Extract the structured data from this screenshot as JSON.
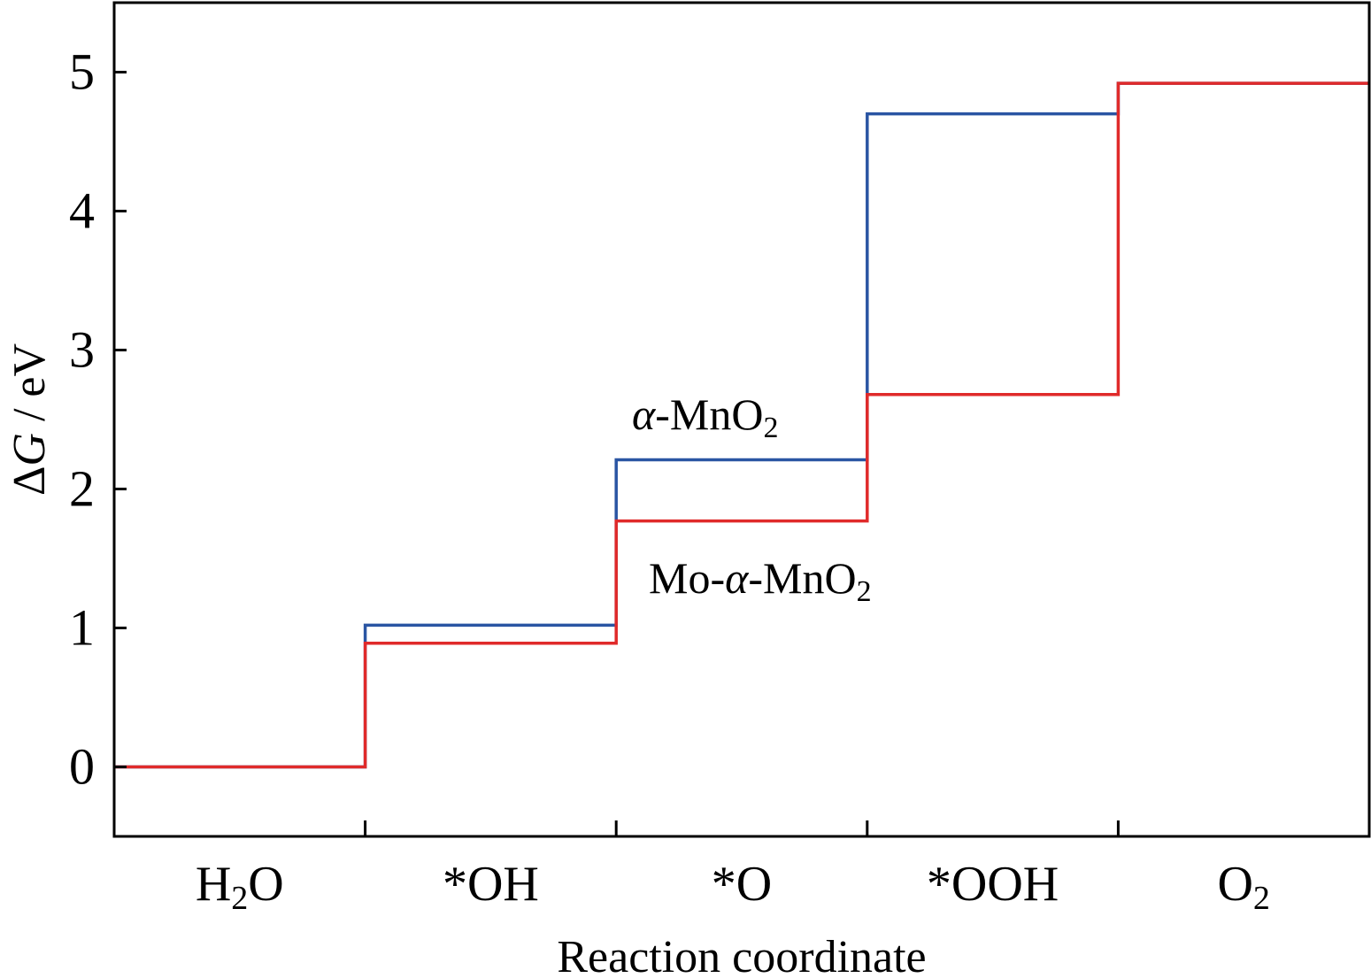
{
  "chart_data": {
    "type": "line",
    "step": true,
    "title": "",
    "xlabel": "Reaction coordinate",
    "ylabel": "ΔG / eV",
    "ylabel_parts": {
      "symbol": "Δ",
      "var": "G",
      "unit": " / eV"
    },
    "categories": [
      "H2O",
      "*OH",
      "*O",
      "*OOH",
      "O2"
    ],
    "category_labels": [
      {
        "main": "H",
        "sub": "2",
        "tail": "O"
      },
      {
        "main": "*OH",
        "sub": "",
        "tail": ""
      },
      {
        "main": "*O",
        "sub": "",
        "tail": ""
      },
      {
        "main": "*OOH",
        "sub": "",
        "tail": ""
      },
      {
        "main": "O",
        "sub": "2",
        "tail": ""
      }
    ],
    "ylim": [
      -0.5,
      5.5
    ],
    "yticks": [
      0,
      1,
      2,
      3,
      4,
      5
    ],
    "ytick_labels": [
      "0",
      "1",
      "2",
      "3",
      "4",
      "5"
    ],
    "grid": false,
    "legend": "none",
    "series": [
      {
        "name": "α-MnO2",
        "color": "#2a55a3",
        "values": [
          0,
          1.02,
          2.21,
          4.7,
          4.92
        ]
      },
      {
        "name": "Mo-α-MnO2",
        "color": "#e02a2a",
        "values": [
          0,
          0.89,
          1.77,
          2.68,
          4.92
        ]
      }
    ],
    "annotations": [
      {
        "series": 0,
        "italic": "α",
        "prefix": "",
        "text": "-MnO",
        "sub": "2"
      },
      {
        "series": 1,
        "italic": "α",
        "prefix": "Mo-",
        "text": "-MnO",
        "sub": "2"
      }
    ]
  }
}
